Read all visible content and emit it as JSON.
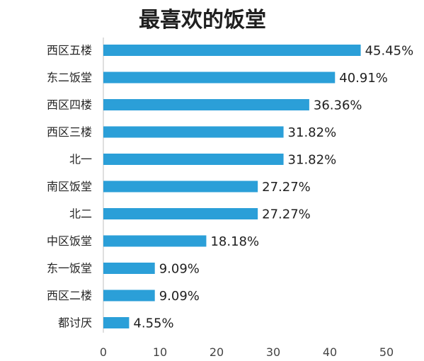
{
  "chart_data": {
    "type": "bar",
    "orientation": "horizontal",
    "title": "最喜欢的饭堂",
    "categories": [
      "西区五楼",
      "东二饭堂",
      "西区四楼",
      "西区三楼",
      "北一",
      "南区饭堂",
      "北二",
      "中区饭堂",
      "东一饭堂",
      "西区二楼",
      "都讨厌"
    ],
    "values": [
      45.45,
      40.91,
      36.36,
      31.82,
      31.82,
      27.27,
      27.27,
      18.18,
      9.09,
      9.09,
      4.55
    ],
    "value_labels": [
      "45.45%",
      "40.91%",
      "36.36%",
      "31.82%",
      "31.82%",
      "27.27%",
      "27.27%",
      "18.18%",
      "9.09%",
      "9.09%",
      "4.55%"
    ],
    "xlim": [
      0,
      50
    ],
    "xticks": [
      "0",
      "10",
      "20",
      "30",
      "40",
      "50"
    ],
    "xlabel": "",
    "ylabel": "",
    "grid": false,
    "bar_color": "#2b9fd8"
  }
}
